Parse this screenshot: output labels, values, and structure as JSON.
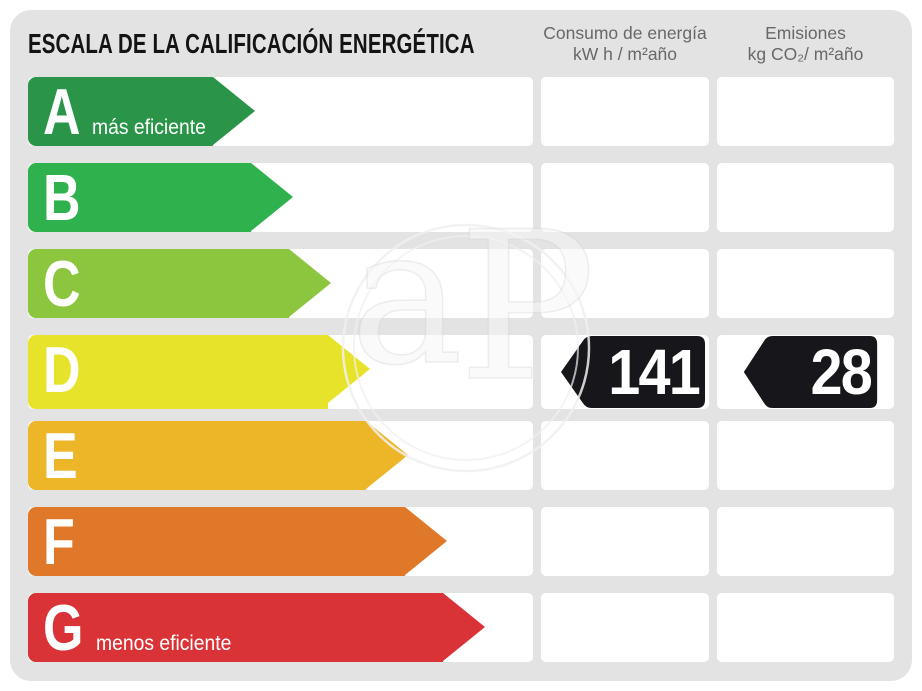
{
  "title": "ESCALA DE LA CALIFICACIÓN ENERGÉTICA",
  "columns": {
    "consumo": {
      "line1": "Consumo de energía",
      "line2": "kW h / m²año"
    },
    "emisiones": {
      "line1": "Emisiones",
      "line2": "kg CO₂/ m²año"
    }
  },
  "scale": {
    "rows": [
      {
        "grade": "A",
        "label": "más eficiente",
        "color": "#2A9549",
        "arrow_width": 227
      },
      {
        "grade": "B",
        "label": "",
        "color": "#2FB14E",
        "arrow_width": 265
      },
      {
        "grade": "C",
        "label": "",
        "color": "#8CC63E",
        "arrow_width": 303
      },
      {
        "grade": "D",
        "label": "",
        "color": "#E7E32A",
        "arrow_width": 342
      },
      {
        "grade": "E",
        "label": "",
        "color": "#EDB528",
        "arrow_width": 380
      },
      {
        "grade": "F",
        "label": "",
        "color": "#E0782A",
        "arrow_width": 419
      },
      {
        "grade": "G",
        "label": "menos eficiente",
        "color": "#D93338",
        "arrow_width": 457
      }
    ]
  },
  "result": {
    "grade": "D",
    "consumo_value": "141",
    "emisiones_value": "28",
    "badge_color": "#17171B"
  },
  "watermark": {
    "text": "aP"
  },
  "colors": {
    "panel_background": "#E3E3E4",
    "cell_background": "#FFFFFF",
    "header_text": "#68686A",
    "title_text": "#141414"
  },
  "chart_data": {
    "type": "bar",
    "title": "ESCALA DE LA CALIFICACIÓN ENERGÉTICA",
    "categories": [
      "A",
      "B",
      "C",
      "D",
      "E",
      "F",
      "G"
    ],
    "series": [
      {
        "name": "arrow_length_px",
        "values": [
          227,
          265,
          303,
          342,
          380,
          419,
          457
        ]
      }
    ],
    "colors": [
      "#2A9549",
      "#2FB14E",
      "#8CC63E",
      "#E7E32A",
      "#EDB528",
      "#E0782A",
      "#D93338"
    ],
    "xlabel": "",
    "ylabel": "",
    "legend_position": "none",
    "annotations": [
      "A = más eficiente",
      "G = menos eficiente",
      "rated grade: D"
    ],
    "result": {
      "grade": "D",
      "consumo_kwh_m2ano": 141,
      "emisiones_kgco2_m2ano": 28
    }
  }
}
